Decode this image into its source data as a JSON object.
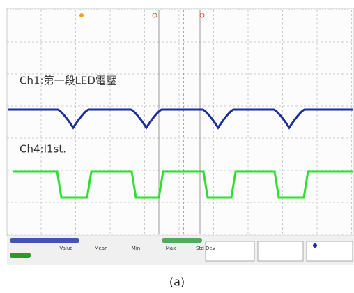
{
  "screen": {
    "ch1_label": "Ch1:第一段LED電壓",
    "ch4_label": "Ch4:I1st.",
    "measure_headers": [
      "Value",
      "Mean",
      "Min",
      "Max",
      "Std Dev"
    ]
  },
  "caption": "(a)"
}
